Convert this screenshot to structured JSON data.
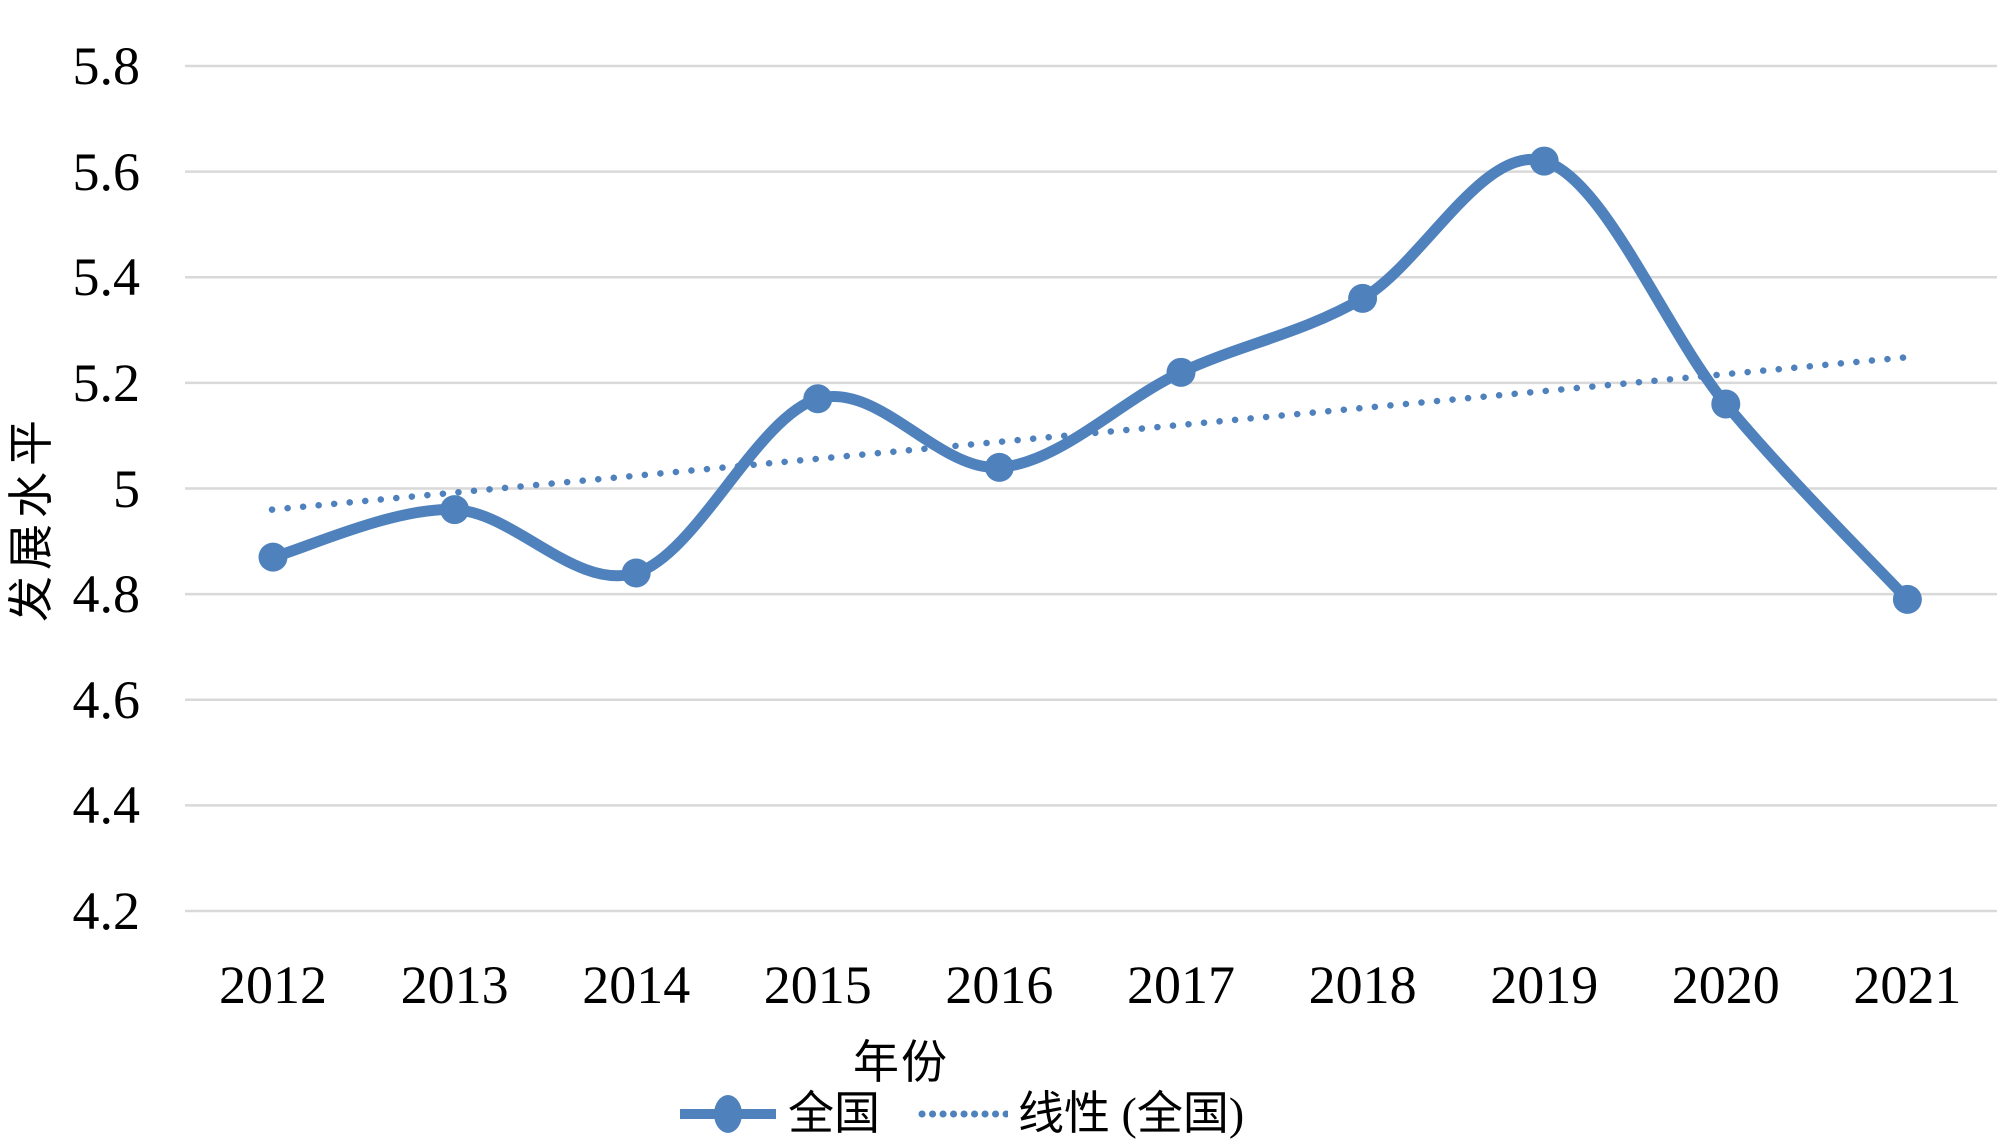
{
  "chart_data": {
    "type": "line",
    "title": "",
    "xlabel": "年份",
    "ylabel": "发展水平",
    "categories": [
      "2012",
      "2013",
      "2014",
      "2015",
      "2016",
      "2017",
      "2018",
      "2019",
      "2020",
      "2021"
    ],
    "series": [
      {
        "name": "全国",
        "style": "solid-smooth-line-with-circle-markers",
        "values": [
          4.87,
          4.96,
          4.84,
          5.17,
          5.04,
          5.22,
          5.36,
          5.62,
          5.16,
          4.79
        ]
      },
      {
        "name": "线性 (全国)",
        "style": "dotted-linear-trendline",
        "endpoint_values": [
          4.96,
          5.25
        ]
      }
    ],
    "ylim": [
      4.2,
      5.8
    ],
    "ytick_step": 0.2,
    "ytick_labels": [
      "5.8",
      "5.6",
      "5.4",
      "5.2",
      "5",
      "4.8",
      "4.6",
      "4.4",
      "4.2"
    ],
    "grid": "horizontal-only",
    "legend_position": "bottom-center",
    "colors": {
      "series": "#4F81BD",
      "gridline": "#D9D9D9",
      "text": "#000000",
      "background": "#FFFFFF"
    }
  }
}
